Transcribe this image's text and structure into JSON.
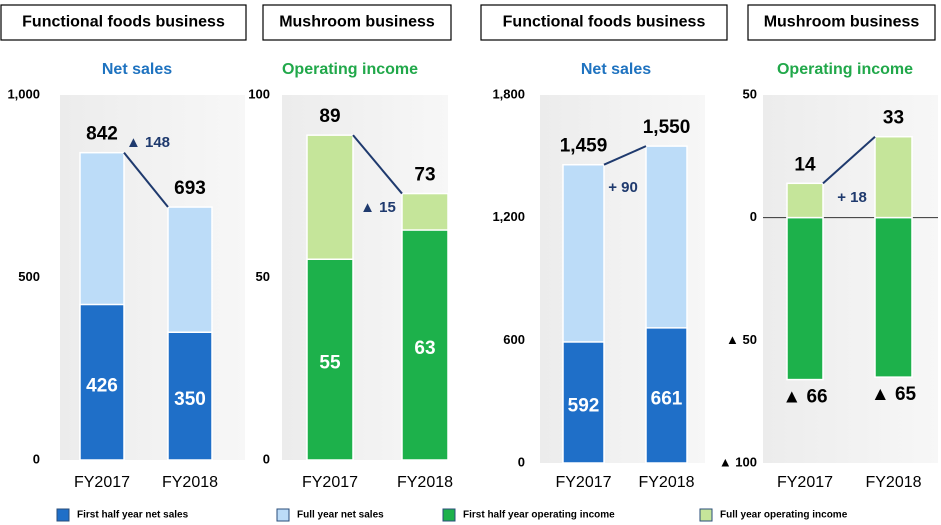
{
  "chart_data": [
    {
      "type": "bar",
      "header": "Functional foods business",
      "title": "Net sales",
      "categories": [
        "FY2017",
        "FY2018"
      ],
      "series": [
        {
          "name": "First half year net sales",
          "color": "#1f6fc8",
          "values": [
            426,
            350
          ]
        },
        {
          "name": "Full year net sales",
          "color": "#bcdcf8",
          "values": [
            842,
            693
          ]
        }
      ],
      "ylim": [
        0,
        1000
      ],
      "yticks": [
        0,
        500,
        {
          "value": 1000,
          "label": "1,000"
        }
      ],
      "annotation": "▲ 148"
    },
    {
      "type": "bar",
      "header": "Mushroom business",
      "title": "Operating income",
      "categories": [
        "FY2017",
        "FY2018"
      ],
      "series": [
        {
          "name": "First half year operating income",
          "color": "#1db14b",
          "values": [
            55,
            63
          ]
        },
        {
          "name": "Full year operating income",
          "color": "#c5e59a",
          "values": [
            89,
            73
          ]
        }
      ],
      "ylim": [
        0,
        100
      ],
      "yticks": [
        0,
        50,
        100
      ],
      "annotation": "▲ 15"
    },
    {
      "type": "bar",
      "header": "Functional foods business",
      "title": "Net sales",
      "categories": [
        "FY2017",
        "FY2018"
      ],
      "series": [
        {
          "color": "#1f6fc8",
          "values": [
            592,
            661
          ]
        },
        {
          "color": "#bcdcf8",
          "values": [
            1459,
            1550
          ],
          "value_labels": [
            "1,459",
            "1,550"
          ]
        }
      ],
      "ylim": [
        0,
        1800
      ],
      "yticks": [
        0,
        600,
        {
          "value": 1200,
          "label": "1,200"
        },
        {
          "value": 1800,
          "label": "1,800"
        }
      ],
      "annotation": "+ 90"
    },
    {
      "type": "bar",
      "header": "Mushroom business",
      "title": "Operating income",
      "categories": [
        "FY2017",
        "FY2018"
      ],
      "series": [
        {
          "color": "#1db14b",
          "values": [
            -66,
            -65
          ],
          "value_labels": [
            "▲ 66",
            "▲ 65"
          ]
        },
        {
          "color": "#c5e59a",
          "values": [
            14,
            33
          ]
        }
      ],
      "ylim": [
        -100,
        50
      ],
      "yticks": [
        {
          "value": -100,
          "label": "▲ 100"
        },
        {
          "value": -50,
          "label": "▲ 50"
        },
        0,
        50
      ],
      "annotation": "+ 18"
    }
  ]
}
